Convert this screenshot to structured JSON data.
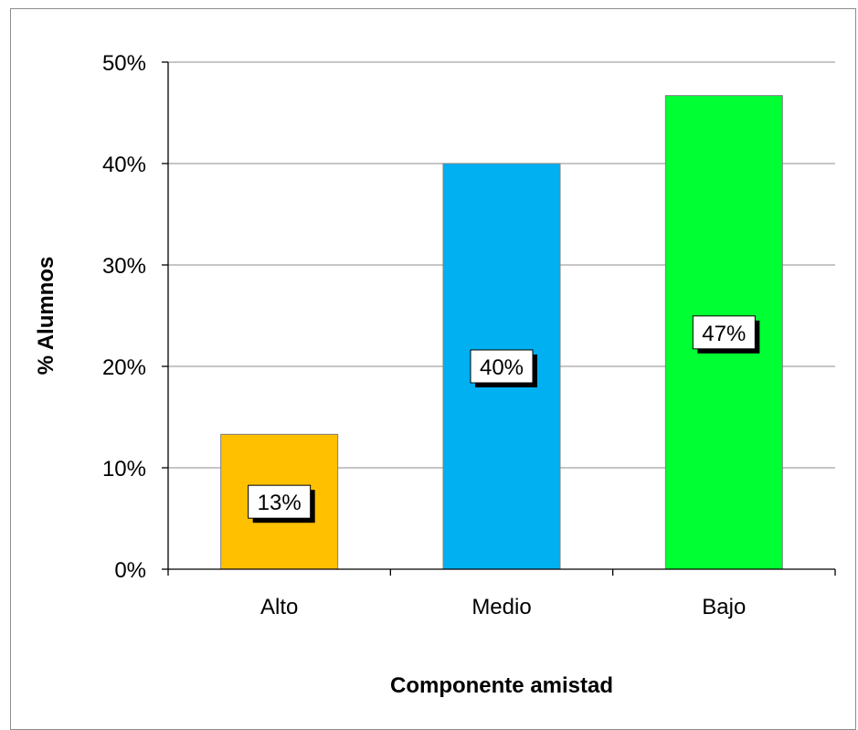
{
  "chart_data": {
    "type": "bar",
    "title": "",
    "xlabel": "Componente amistad",
    "ylabel": "% Alumnos",
    "categories": [
      "Alto",
      "Medio",
      "Bajo"
    ],
    "values": [
      13.3,
      40.0,
      46.7
    ],
    "data_labels": [
      "13%",
      "40%",
      "47%"
    ],
    "colors": [
      "#FFC000",
      "#00B0F0",
      "#00FF33"
    ],
    "ylim": [
      0,
      50
    ],
    "yticks": [
      0,
      10,
      20,
      30,
      40,
      50
    ],
    "ytick_labels": [
      "0%",
      "10%",
      "20%",
      "30%",
      "40%",
      "50%"
    ],
    "grid": true,
    "legend": "none"
  }
}
